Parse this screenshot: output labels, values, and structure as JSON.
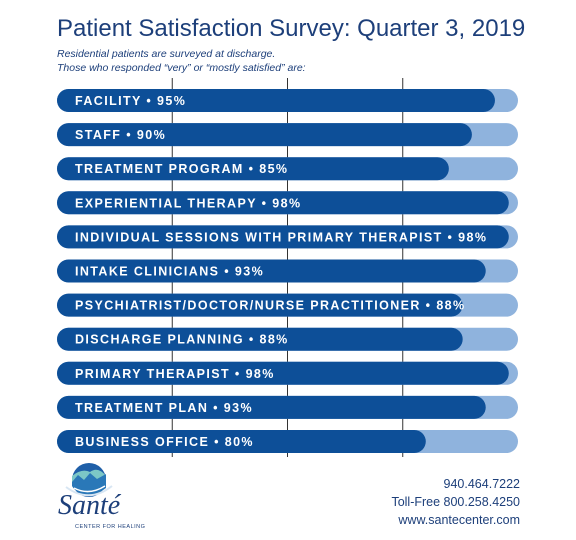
{
  "title": "Patient Satisfaction Survey: Quarter 3, 2019",
  "subtitle": {
    "line1": "Residential patients are surveyed at discharge.",
    "line2": "Those who responded “very” or “mostly satisfied” are:"
  },
  "chart_data": {
    "type": "bar",
    "orientation": "horizontal",
    "categories": [
      "FACILITY",
      "STAFF",
      "TREATMENT PROGRAM",
      "EXPERIENTIAL THERAPY",
      "INDIVIDUAL SESSIONS WITH PRIMARY THERAPIST",
      "INTAKE CLINICIANS",
      "PSYCHIATRIST/DOCTOR/NURSE PRACTITIONER",
      "DISCHARGE PLANNING",
      "PRIMARY THERAPIST",
      "TREATMENT PLAN",
      "BUSINESS OFFICE"
    ],
    "values": [
      95,
      90,
      85,
      98,
      98,
      93,
      88,
      88,
      98,
      93,
      80
    ],
    "labels": [
      "FACILITY • 95%",
      "STAFF • 90%",
      "TREATMENT PROGRAM • 85%",
      "EXPERIENTIAL THERAPY • 98%",
      "INDIVIDUAL SESSIONS WITH PRIMARY THERAPIST • 98%",
      "INTAKE CLINICIANS • 93%",
      "PSYCHIATRIST/DOCTOR/NURSE PRACTITIONER • 88%",
      "DISCHARGE PLANNING • 88%",
      "PRIMARY THERAPIST • 98%",
      "TREATMENT PLAN • 93%",
      "BUSINESS OFFICE • 80%"
    ],
    "xlim": [
      0,
      100
    ],
    "grid": true
  },
  "colors": {
    "bar": "#0d4f98",
    "track": "#8fb3dd",
    "text": "#1d3f7a"
  },
  "logo": {
    "name": "Santé",
    "tagline": "CENTER FOR HEALING"
  },
  "contact": {
    "phone": "940.464.7222",
    "tollfree": "Toll-Free 800.258.4250",
    "website": "www.santecenter.com"
  }
}
